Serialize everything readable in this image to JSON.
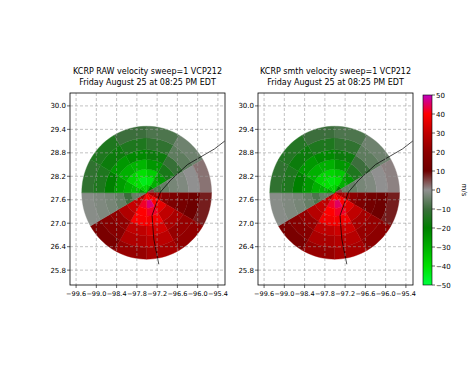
{
  "chart_data": [
    {
      "type": "radar_ppi",
      "title": "KCRP RAW velocity sweep=1 VCP212",
      "subtitle": "Friday August 25 at 08:25 PM EDT",
      "xlim": [
        -99.78,
        -95.19
      ],
      "ylim": [
        25.42,
        30.33
      ],
      "xticks": [
        {
          "value": -99.6,
          "label": "−99.6"
        },
        {
          "value": -99.0,
          "label": "−99.0"
        },
        {
          "value": -98.4,
          "label": "−98.4"
        },
        {
          "value": -97.8,
          "label": "−97.8"
        },
        {
          "value": -97.2,
          "label": "−97.2"
        },
        {
          "value": -96.6,
          "label": "−96.6"
        },
        {
          "value": -96.0,
          "label": "−96.0"
        },
        {
          "value": -95.4,
          "label": "−95.4"
        }
      ],
      "yticks": [
        {
          "value": 30,
          "label": "30.0"
        },
        29.4,
        28.8,
        28.2,
        27.6,
        {
          "value": 27,
          "label": "27.0"
        },
        26.4,
        25.8
      ],
      "grid": true,
      "center": [
        -97.51,
        27.78
      ],
      "range_bins": [
        0,
        0.2,
        0.4,
        0.6,
        0.85,
        1.1,
        1.4,
        1.7
      ],
      "azimuth_bins": [
        0,
        30,
        60,
        90,
        120,
        150,
        180,
        210,
        240,
        270,
        300,
        330,
        360
      ],
      "cells": [
        [
          -35,
          -20,
          5,
          25,
          35,
          40,
          38,
          25,
          -5,
          -25,
          -35,
          -38
        ],
        [
          -42,
          -30,
          -8,
          25,
          40,
          46,
          42,
          30,
          -5,
          -32,
          -40,
          -44
        ],
        [
          -36,
          -25,
          -5,
          18,
          36,
          42,
          40,
          31,
          -10,
          -30,
          -38,
          -40
        ],
        [
          -25,
          -16,
          -3,
          15,
          30,
          38,
          39,
          27,
          -5,
          -26,
          -30,
          -31
        ],
        [
          -18,
          -11,
          -2,
          13,
          26,
          33,
          30,
          21,
          -3,
          -20,
          -25,
          -22
        ],
        [
          -12,
          -6,
          0,
          10,
          22,
          29,
          27,
          18,
          -2,
          -15,
          -18,
          -15
        ],
        [
          -8,
          -4,
          2,
          8,
          21,
          25,
          22,
          14,
          -1,
          -12,
          -15,
          -10
        ]
      ],
      "coastline": {
        "lon": [
          -97.15,
          -97.3,
          -97.35,
          -97.1,
          -96.8,
          -96.3,
          -95.5,
          -95.2
        ],
        "lat": [
          25.95,
          26.6,
          27.2,
          27.8,
          28.1,
          28.5,
          28.9,
          29.1
        ]
      }
    },
    {
      "type": "radar_ppi",
      "title": "KCRP smth velocity sweep=1 VCP212",
      "subtitle": "Friday August 25 at 08:25 PM EDT",
      "xlim": [
        -99.78,
        -95.19
      ],
      "ylim": [
        25.42,
        30.33
      ],
      "xticks": [
        {
          "value": -99.6,
          "label": "−99.6"
        },
        {
          "value": -99.0,
          "label": "−99.0"
        },
        {
          "value": -98.4,
          "label": "−98.4"
        },
        {
          "value": -97.8,
          "label": "−97.8"
        },
        {
          "value": -97.2,
          "label": "−97.2"
        },
        {
          "value": -96.6,
          "label": "−96.6"
        },
        {
          "value": -96.0,
          "label": "−96.0"
        },
        {
          "value": -95.4,
          "label": "−95.4"
        }
      ],
      "yticks": [
        {
          "value": 30,
          "label": "30.0"
        },
        29.4,
        28.8,
        28.2,
        27.6,
        {
          "value": 27,
          "label": "27.0"
        },
        26.4,
        25.8
      ],
      "grid": true,
      "center": [
        -97.51,
        27.78
      ],
      "range_bins": [
        0,
        0.2,
        0.4,
        0.6,
        0.85,
        1.1,
        1.4,
        1.7
      ],
      "azimuth_bins": [
        0,
        30,
        60,
        90,
        120,
        150,
        180,
        210,
        240,
        270,
        300,
        330,
        360
      ],
      "cells": [
        [
          -35,
          -20,
          5,
          25,
          35,
          40,
          38,
          25,
          -5,
          -25,
          -35,
          -38
        ],
        [
          -40,
          -30,
          -5,
          25,
          40,
          45,
          42,
          30,
          -5,
          -30,
          -40,
          -42
        ],
        [
          -35,
          -25,
          -5,
          20,
          35,
          42,
          40,
          30,
          -8,
          -30,
          -38,
          -38
        ],
        [
          -25,
          -15,
          -3,
          15,
          30,
          38,
          38,
          28,
          -5,
          -25,
          -30,
          -30
        ],
        [
          -18,
          -10,
          -2,
          12,
          25,
          32,
          30,
          22,
          -3,
          -20,
          -25,
          -22
        ],
        [
          -12,
          -6,
          0,
          10,
          22,
          28,
          26,
          18,
          -2,
          -15,
          -18,
          -15
        ],
        [
          -8,
          -4,
          1,
          8,
          20,
          25,
          22,
          14,
          -1,
          -12,
          -14,
          -10
        ]
      ],
      "coastline": {
        "lon": [
          -97.15,
          -97.3,
          -97.35,
          -97.1,
          -96.8,
          -96.3,
          -95.5,
          -95.2
        ],
        "lat": [
          25.95,
          26.6,
          27.2,
          27.8,
          28.1,
          28.5,
          28.9,
          29.1
        ]
      },
      "colorbar": {
        "label": "m/s",
        "range": [
          -50,
          50
        ],
        "ticks": [
          {
            "value": -50,
            "label": "−50"
          },
          {
            "value": -40,
            "label": "−40"
          },
          {
            "value": -30,
            "label": "−30"
          },
          {
            "value": -20,
            "label": "−20"
          },
          {
            "value": -10,
            "label": "−10"
          },
          0,
          10,
          20,
          30,
          40,
          50
        ],
        "colors": [
          "#00ff40",
          "#00e000",
          "#00b000",
          "#008000",
          "#3c6e3c",
          "#909090",
          "#6e0000",
          "#8c0000",
          "#c00000",
          "#ff0000",
          "#c000c0"
        ]
      }
    }
  ]
}
